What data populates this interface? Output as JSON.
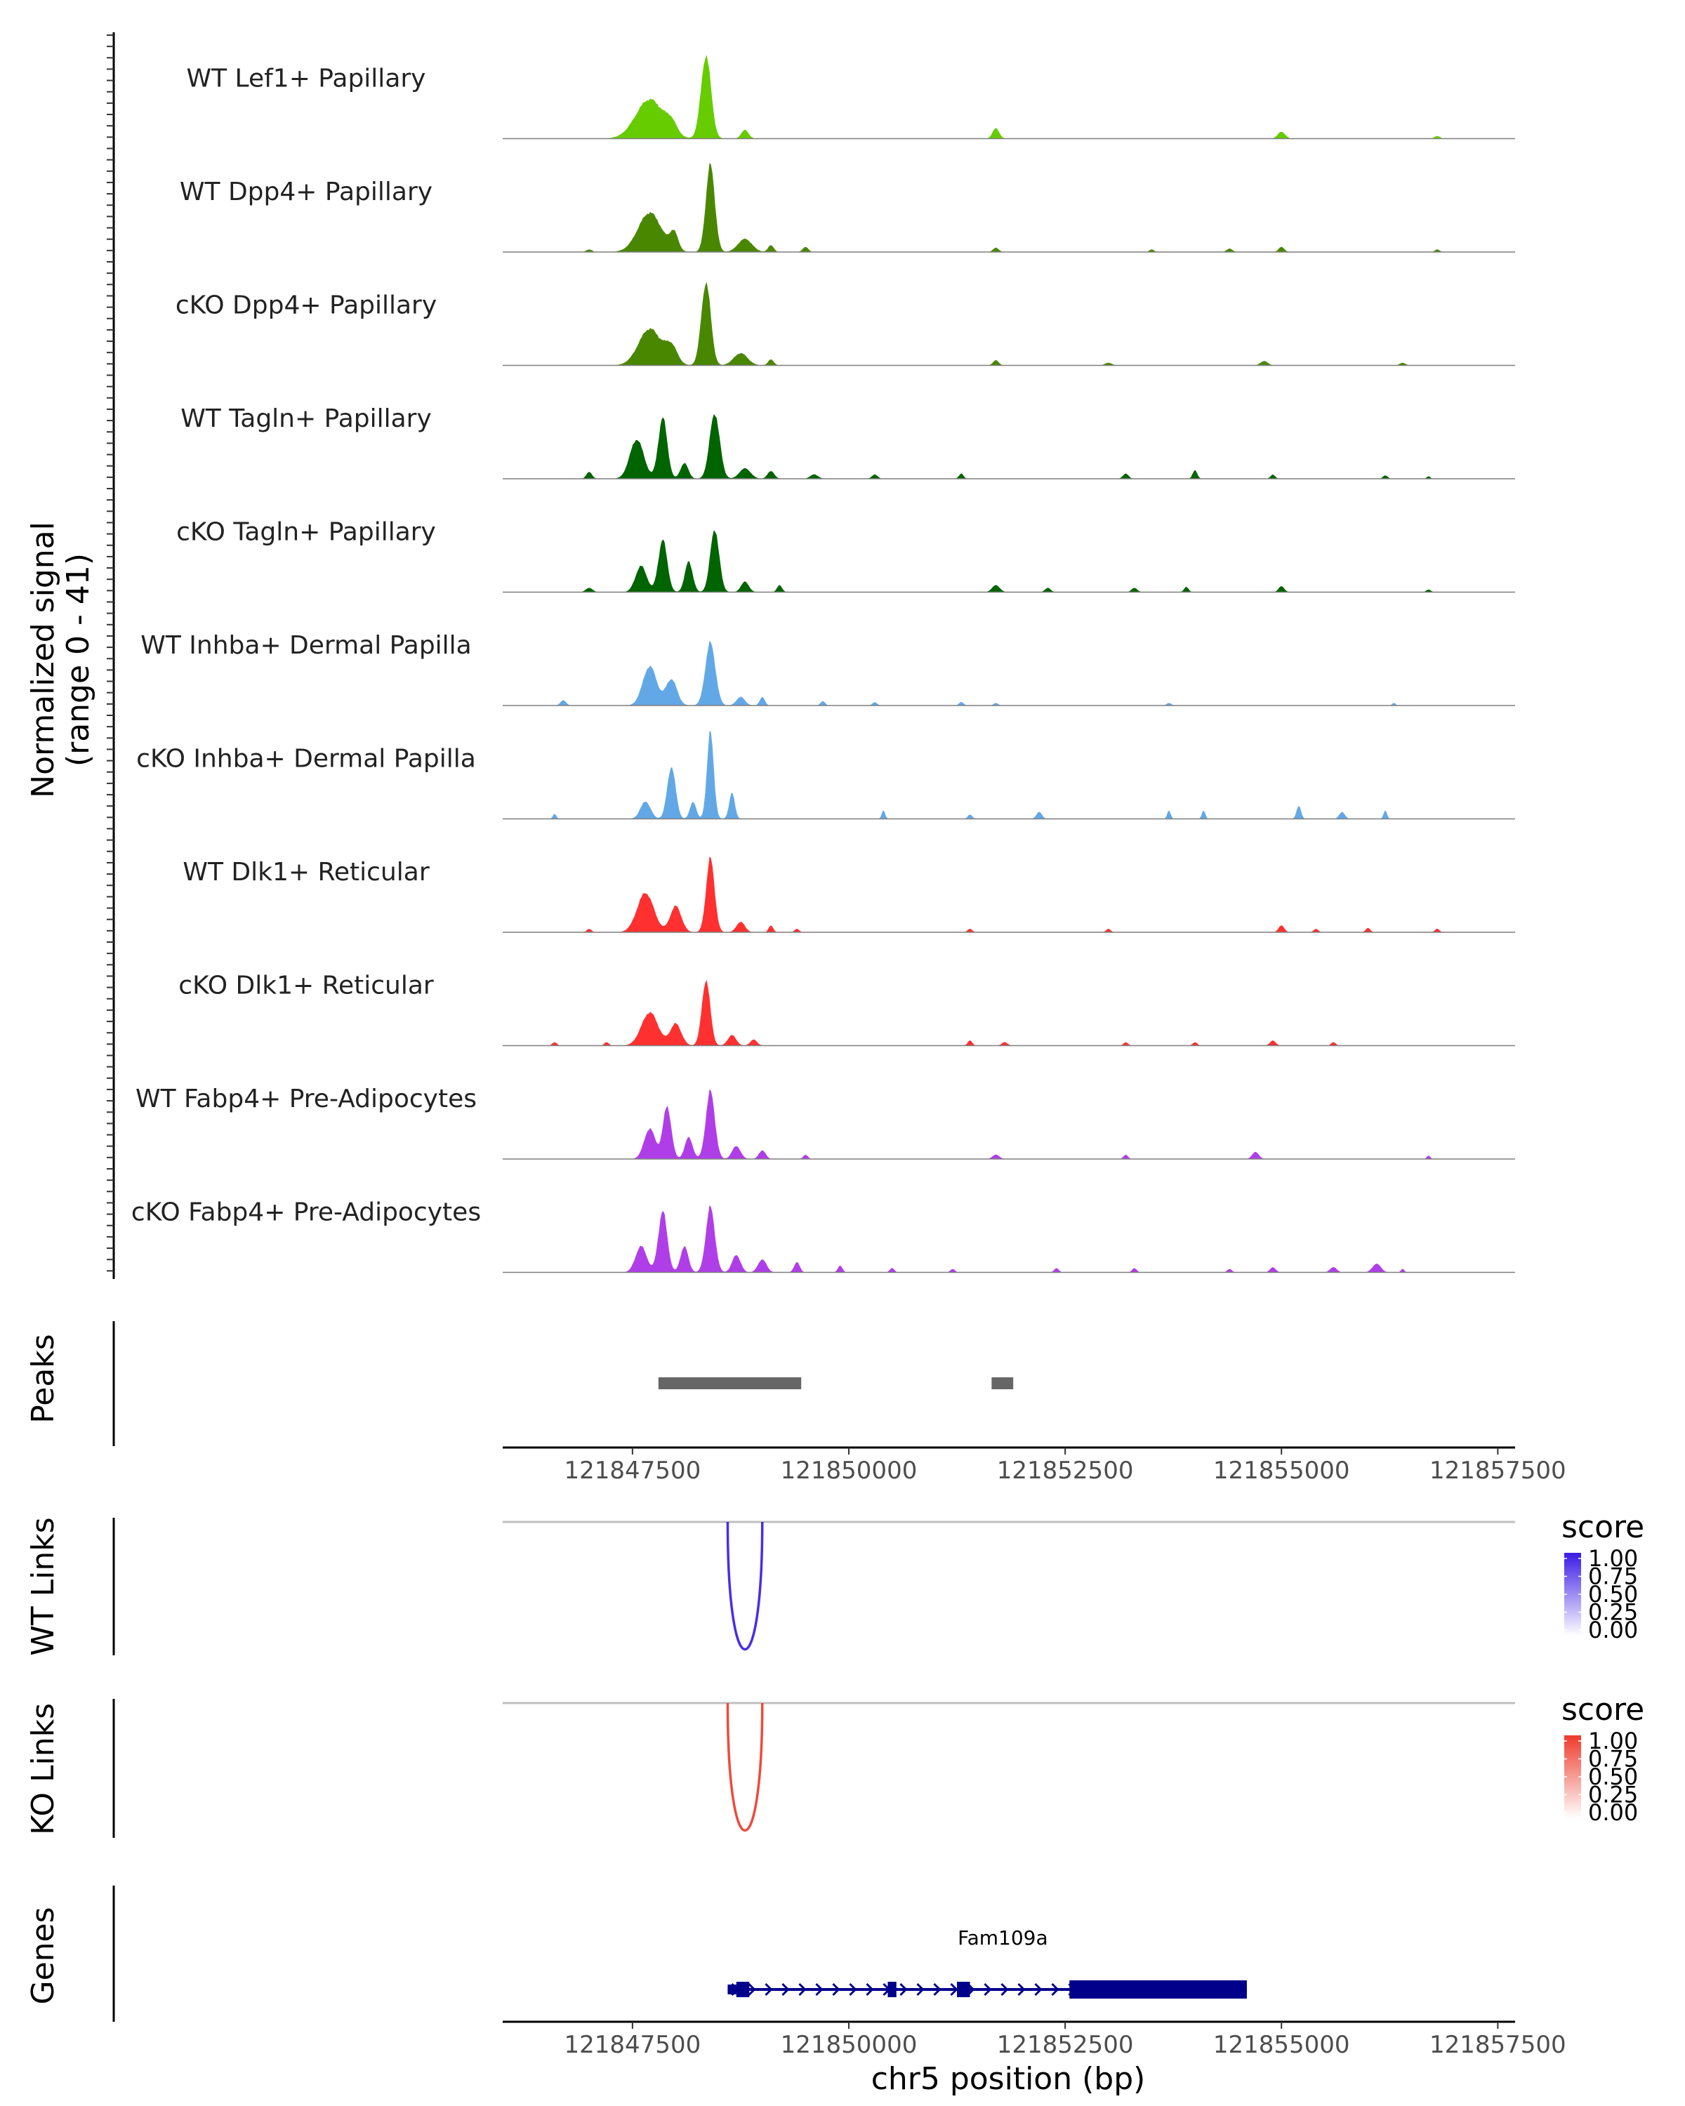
{
  "chart_data": {
    "type": "area",
    "title": "",
    "xlabel": "chr5 position (bp)",
    "xlim": [
      121846000,
      121857700
    ],
    "x_ticks": [
      "121847500",
      "121850000",
      "121852500",
      "121855000",
      "121857500"
    ],
    "x_tick_values": [
      121847500,
      121850000,
      121852500,
      121855000,
      121857500
    ],
    "coverage": {
      "ylabel_line1": "Normalized signal",
      "ylabel_line2": "(range 0 - 41)",
      "y_range": [
        0,
        41
      ],
      "tracks": [
        {
          "label": "WT Lef1+ Papillary",
          "color": "#66CC00",
          "peaks": [
            [
              121847700,
              500,
              0.45
            ],
            [
              121847950,
              200,
              0.12
            ],
            [
              121848350,
              180,
              0.95
            ],
            [
              121848800,
              130,
              0.1
            ],
            [
              121851700,
              120,
              0.12
            ],
            [
              121855000,
              130,
              0.08
            ],
            [
              121856800,
              100,
              0.03
            ]
          ]
        },
        {
          "label": "WT Dpp4+ Papillary",
          "color": "#4A8700",
          "peaks": [
            [
              121847700,
              420,
              0.45
            ],
            [
              121847980,
              150,
              0.2
            ],
            [
              121848400,
              160,
              1.0
            ],
            [
              121848800,
              250,
              0.15
            ],
            [
              121849100,
              100,
              0.08
            ],
            [
              121849500,
              100,
              0.06
            ],
            [
              121851700,
              100,
              0.05
            ],
            [
              121855000,
              100,
              0.06
            ],
            [
              121854400,
              100,
              0.04
            ],
            [
              121847000,
              100,
              0.03
            ],
            [
              121856800,
              80,
              0.03
            ],
            [
              121853500,
              80,
              0.03
            ]
          ]
        },
        {
          "label": "cKO Dpp4+ Papillary",
          "color": "#4A8700",
          "peaks": [
            [
              121847700,
              400,
              0.42
            ],
            [
              121847950,
              220,
              0.2
            ],
            [
              121848350,
              170,
              0.95
            ],
            [
              121848750,
              250,
              0.14
            ],
            [
              121849100,
              100,
              0.07
            ],
            [
              121851700,
              100,
              0.06
            ],
            [
              121854800,
              130,
              0.05
            ],
            [
              121853000,
              120,
              0.03
            ],
            [
              121856400,
              100,
              0.03
            ]
          ]
        },
        {
          "label": "WT Tagln+ Papillary",
          "color": "#006400",
          "peaks": [
            [
              121847550,
              250,
              0.45
            ],
            [
              121847850,
              160,
              0.7
            ],
            [
              121848100,
              140,
              0.18
            ],
            [
              121848450,
              180,
              0.75
            ],
            [
              121848800,
              200,
              0.12
            ],
            [
              121849100,
              120,
              0.09
            ],
            [
              121847000,
              100,
              0.08
            ],
            [
              121849600,
              140,
              0.05
            ],
            [
              121850300,
              100,
              0.05
            ],
            [
              121851300,
              80,
              0.06
            ],
            [
              121853200,
              100,
              0.06
            ],
            [
              121854000,
              80,
              0.1
            ],
            [
              121854900,
              80,
              0.05
            ],
            [
              121856200,
              80,
              0.04
            ],
            [
              121856700,
              60,
              0.03
            ]
          ]
        },
        {
          "label": "cKO Tagln+ Papillary",
          "color": "#006400",
          "peaks": [
            [
              121847600,
              200,
              0.3
            ],
            [
              121847850,
              160,
              0.6
            ],
            [
              121848150,
              140,
              0.35
            ],
            [
              121848450,
              160,
              0.72
            ],
            [
              121848800,
              140,
              0.12
            ],
            [
              121849200,
              90,
              0.08
            ],
            [
              121847000,
              120,
              0.05
            ],
            [
              121851700,
              140,
              0.08
            ],
            [
              121852300,
              100,
              0.05
            ],
            [
              121853300,
              100,
              0.05
            ],
            [
              121853900,
              80,
              0.06
            ],
            [
              121855000,
              100,
              0.07
            ],
            [
              121856700,
              80,
              0.03
            ]
          ]
        },
        {
          "label": "WT Inhba+ Dermal Papilla",
          "color": "#63A8E6",
          "peaks": [
            [
              121847700,
              250,
              0.45
            ],
            [
              121847950,
              200,
              0.3
            ],
            [
              121848400,
              180,
              0.72
            ],
            [
              121848750,
              150,
              0.1
            ],
            [
              121849000,
              90,
              0.1
            ],
            [
              121846700,
              100,
              0.06
            ],
            [
              121849700,
              80,
              0.05
            ],
            [
              121850300,
              80,
              0.04
            ],
            [
              121851300,
              80,
              0.04
            ],
            [
              121851700,
              80,
              0.03
            ],
            [
              121853700,
              80,
              0.03
            ],
            [
              121856300,
              60,
              0.03
            ]
          ]
        },
        {
          "label": "cKO Inhba+ Dermal Papilla",
          "color": "#63A8E6",
          "peaks": [
            [
              121847650,
              180,
              0.2
            ],
            [
              121847950,
              150,
              0.6
            ],
            [
              121848200,
              110,
              0.2
            ],
            [
              121848400,
              120,
              1.0
            ],
            [
              121848650,
              100,
              0.3
            ],
            [
              121846600,
              60,
              0.06
            ],
            [
              121850400,
              60,
              0.1
            ],
            [
              121851400,
              80,
              0.05
            ],
            [
              121852200,
              100,
              0.08
            ],
            [
              121853700,
              60,
              0.1
            ],
            [
              121854100,
              60,
              0.1
            ],
            [
              121855200,
              80,
              0.15
            ],
            [
              121855700,
              100,
              0.08
            ],
            [
              121856200,
              60,
              0.1
            ]
          ]
        },
        {
          "label": "WT Dlk1+ Reticular",
          "color": "#FF3030",
          "peaks": [
            [
              121847650,
              300,
              0.45
            ],
            [
              121848000,
              200,
              0.3
            ],
            [
              121848400,
              150,
              0.85
            ],
            [
              121848750,
              150,
              0.12
            ],
            [
              121849100,
              80,
              0.08
            ],
            [
              121849400,
              80,
              0.04
            ],
            [
              121847000,
              80,
              0.04
            ],
            [
              121851400,
              80,
              0.04
            ],
            [
              121853000,
              80,
              0.04
            ],
            [
              121855000,
              100,
              0.08
            ],
            [
              121855400,
              80,
              0.04
            ],
            [
              121856000,
              80,
              0.05
            ],
            [
              121856800,
              80,
              0.04
            ]
          ]
        },
        {
          "label": "cKO Dlk1+ Reticular",
          "color": "#FF3030",
          "peaks": [
            [
              121847700,
              300,
              0.38
            ],
            [
              121848000,
              200,
              0.25
            ],
            [
              121848350,
              150,
              0.75
            ],
            [
              121848650,
              150,
              0.12
            ],
            [
              121848900,
              120,
              0.07
            ],
            [
              121846600,
              80,
              0.04
            ],
            [
              121847200,
              80,
              0.04
            ],
            [
              121851400,
              80,
              0.06
            ],
            [
              121851800,
              100,
              0.04
            ],
            [
              121853200,
              80,
              0.04
            ],
            [
              121854000,
              80,
              0.04
            ],
            [
              121854900,
              100,
              0.06
            ],
            [
              121855600,
              80,
              0.04
            ]
          ]
        },
        {
          "label": "WT Fabp4+ Pre-Adipocytes",
          "color": "#B03EE8",
          "peaks": [
            [
              121847700,
              200,
              0.35
            ],
            [
              121847900,
              150,
              0.6
            ],
            [
              121848150,
              140,
              0.25
            ],
            [
              121848400,
              160,
              0.78
            ],
            [
              121848700,
              150,
              0.15
            ],
            [
              121849000,
              120,
              0.1
            ],
            [
              121849500,
              80,
              0.05
            ],
            [
              121851700,
              120,
              0.05
            ],
            [
              121853200,
              80,
              0.05
            ],
            [
              121854700,
              120,
              0.08
            ],
            [
              121856700,
              60,
              0.04
            ]
          ]
        },
        {
          "label": "cKO Fabp4+ Pre-Adipocytes",
          "color": "#B03EE8",
          "peaks": [
            [
              121847600,
              200,
              0.3
            ],
            [
              121847850,
              160,
              0.7
            ],
            [
              121848100,
              140,
              0.3
            ],
            [
              121848400,
              160,
              0.75
            ],
            [
              121848700,
              150,
              0.2
            ],
            [
              121849000,
              150,
              0.15
            ],
            [
              121849400,
              100,
              0.12
            ],
            [
              121849900,
              80,
              0.08
            ],
            [
              121850500,
              80,
              0.05
            ],
            [
              121851200,
              80,
              0.04
            ],
            [
              121852400,
              80,
              0.05
            ],
            [
              121853300,
              80,
              0.05
            ],
            [
              121854400,
              80,
              0.04
            ],
            [
              121854900,
              100,
              0.06
            ],
            [
              121855600,
              120,
              0.06
            ],
            [
              121856100,
              150,
              0.1
            ],
            [
              121856400,
              60,
              0.04
            ]
          ]
        }
      ]
    },
    "peaks_track": {
      "label": "Peaks",
      "regions": [
        [
          121847800,
          121849450
        ],
        [
          121851650,
          121851900
        ]
      ],
      "color": "#666666"
    },
    "wt_links": {
      "label": "WT Links",
      "legend_title": "score",
      "legend_ticks": [
        "1.00",
        "0.75",
        "0.50",
        "0.25",
        "0.00"
      ],
      "color_high": "#3B1AE6",
      "links": [
        {
          "start": 121848600,
          "end": 121849000,
          "score": 0.85
        }
      ]
    },
    "ko_links": {
      "label": "KO Links",
      "legend_title": "score",
      "legend_ticks": [
        "1.00",
        "0.75",
        "0.50",
        "0.25",
        "0.00"
      ],
      "color_high": "#EE3B2C",
      "links": [
        {
          "start": 121848600,
          "end": 121849000,
          "score": 0.8
        }
      ]
    },
    "genes": {
      "label": "Genes",
      "color": "#00008B",
      "gene_name": "Fam109a",
      "gene_start": 121848600,
      "gene_end": 121854600,
      "exons": [
        [
          121848600,
          121848700
        ],
        [
          121848700,
          121848850
        ],
        [
          121850450,
          121850550
        ],
        [
          121851250,
          121851400
        ],
        [
          121852550,
          121854600
        ]
      ]
    }
  }
}
